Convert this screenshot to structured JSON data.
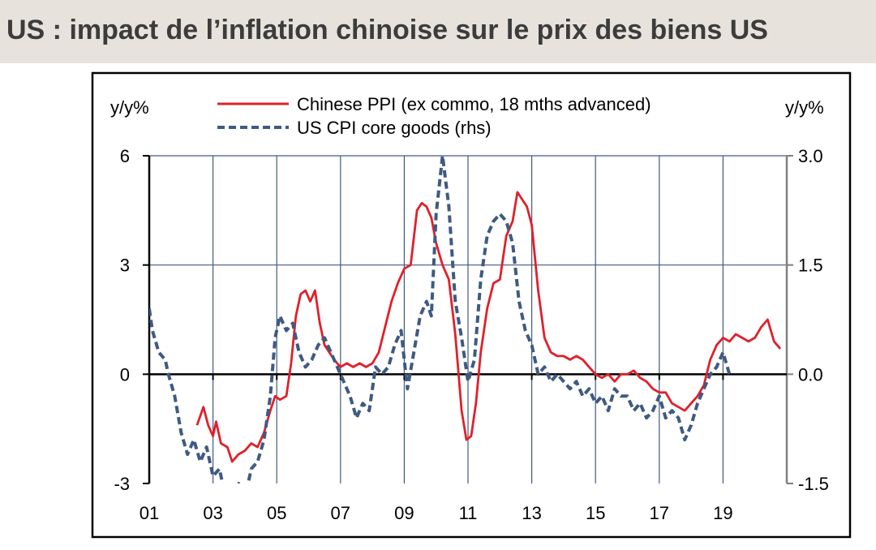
{
  "title": "US : impact de l’inflation chinoise sur le prix des biens US",
  "colors": {
    "title_background": "#e7e3dc",
    "ppi_line": "#e0202a",
    "cpi_line": "#3f5a82",
    "grid": "#3f5a82",
    "frame": "#000000"
  },
  "chart_data": {
    "type": "line",
    "title": "US : impact de l’inflation chinoise sur le prix des biens US",
    "ylabel_left": "y/y%",
    "ylabel_right": "y/y%",
    "xlabel": "",
    "x_tick_labels": [
      "01",
      "03",
      "05",
      "07",
      "09",
      "11",
      "13",
      "15",
      "17",
      "19"
    ],
    "x_tick_years": [
      2001,
      2003,
      2005,
      2007,
      2009,
      2011,
      2013,
      2015,
      2017,
      2019
    ],
    "xlim": [
      2001,
      2021
    ],
    "y_left_ticks": [
      "6",
      "3",
      "0",
      "-3"
    ],
    "y_left_values": [
      6,
      3,
      0,
      -3
    ],
    "ylim_left": [
      -3,
      6
    ],
    "y_right_ticks": [
      "3.0",
      "1.5",
      "0.0",
      "-1.5"
    ],
    "y_right_values": [
      3.0,
      1.5,
      0.0,
      -1.5
    ],
    "ylim_right": [
      -1.5,
      3.0
    ],
    "grid": true,
    "legend_position": "top",
    "series": [
      {
        "name": "Chinese PPI (ex commo, 18 mths advanced)",
        "axis": "left",
        "style": "solid",
        "color": "#e0202a",
        "x": [
          2002.5,
          2002.7,
          2002.85,
          2003.0,
          2003.1,
          2003.25,
          2003.45,
          2003.6,
          2003.8,
          2004.0,
          2004.2,
          2004.4,
          2004.6,
          2004.8,
          2004.95,
          2005.1,
          2005.3,
          2005.45,
          2005.6,
          2005.75,
          2005.9,
          2006.05,
          2006.2,
          2006.35,
          2006.5,
          2006.65,
          2006.8,
          2007.0,
          2007.2,
          2007.4,
          2007.6,
          2007.8,
          2008.0,
          2008.2,
          2008.4,
          2008.6,
          2008.8,
          2009.0,
          2009.2,
          2009.4,
          2009.55,
          2009.7,
          2009.85,
          2010.0,
          2010.2,
          2010.4,
          2010.6,
          2010.8,
          2010.95,
          2011.1,
          2011.25,
          2011.4,
          2011.6,
          2011.8,
          2012.0,
          2012.2,
          2012.4,
          2012.55,
          2012.7,
          2012.85,
          2013.0,
          2013.2,
          2013.4,
          2013.6,
          2013.8,
          2014.0,
          2014.2,
          2014.4,
          2014.6,
          2014.8,
          2015.0,
          2015.2,
          2015.4,
          2015.6,
          2015.8,
          2016.0,
          2016.2,
          2016.4,
          2016.6,
          2016.8,
          2017.0,
          2017.2,
          2017.4,
          2017.6,
          2017.8,
          2018.0,
          2018.2,
          2018.4,
          2018.6,
          2018.8,
          2019.0,
          2019.2,
          2019.4,
          2019.6,
          2019.8,
          2020.0,
          2020.2,
          2020.4,
          2020.6,
          2020.8
        ],
        "y": [
          -1.4,
          -0.9,
          -1.4,
          -1.7,
          -1.3,
          -1.9,
          -2.0,
          -2.4,
          -2.2,
          -2.1,
          -1.9,
          -2.0,
          -1.6,
          -1.0,
          -0.6,
          -0.7,
          -0.6,
          0.3,
          1.6,
          2.2,
          2.3,
          2.0,
          2.3,
          1.4,
          0.8,
          0.6,
          0.4,
          0.2,
          0.3,
          0.2,
          0.3,
          0.2,
          0.3,
          0.6,
          1.3,
          2.0,
          2.5,
          2.9,
          3.0,
          4.5,
          4.7,
          4.6,
          4.3,
          3.6,
          3.0,
          2.6,
          1.1,
          -1.0,
          -1.8,
          -1.7,
          -0.8,
          0.6,
          1.8,
          2.5,
          2.6,
          3.8,
          4.2,
          5.0,
          4.8,
          4.6,
          4.1,
          2.3,
          1.0,
          0.6,
          0.5,
          0.5,
          0.4,
          0.5,
          0.4,
          0.2,
          0.0,
          -0.1,
          0.0,
          -0.2,
          0.0,
          0.0,
          0.1,
          -0.1,
          -0.2,
          -0.4,
          -0.5,
          -0.5,
          -0.8,
          -0.9,
          -1.0,
          -0.8,
          -0.6,
          -0.3,
          0.4,
          0.8,
          1.0,
          0.9,
          1.1,
          1.0,
          0.9,
          1.0,
          1.3,
          1.5,
          0.9,
          0.7
        ]
      },
      {
        "name": "US CPI core goods (rhs)",
        "axis": "right",
        "style": "dashed",
        "color": "#3f5a82",
        "x": [
          2001.0,
          2001.1,
          2001.3,
          2001.5,
          2001.6,
          2001.8,
          2002.0,
          2002.2,
          2002.4,
          2002.6,
          2002.8,
          2003.0,
          2003.2,
          2003.4,
          2003.6,
          2003.8,
          2004.0,
          2004.2,
          2004.4,
          2004.6,
          2004.8,
          2004.95,
          2005.1,
          2005.3,
          2005.5,
          2005.7,
          2005.9,
          2006.1,
          2006.3,
          2006.5,
          2006.7,
          2006.9,
          2007.1,
          2007.3,
          2007.5,
          2007.7,
          2007.9,
          2008.1,
          2008.3,
          2008.5,
          2008.7,
          2008.9,
          2009.1,
          2009.3,
          2009.5,
          2009.7,
          2009.85,
          2010.0,
          2010.2,
          2010.4,
          2010.6,
          2010.8,
          2011.0,
          2011.2,
          2011.4,
          2011.6,
          2011.8,
          2012.0,
          2012.2,
          2012.4,
          2012.6,
          2012.8,
          2013.0,
          2013.2,
          2013.4,
          2013.6,
          2013.8,
          2014.0,
          2014.2,
          2014.4,
          2014.6,
          2014.8,
          2015.0,
          2015.2,
          2015.4,
          2015.6,
          2015.8,
          2016.0,
          2016.2,
          2016.4,
          2016.6,
          2016.8,
          2017.0,
          2017.2,
          2017.4,
          2017.6,
          2017.8,
          2018.0,
          2018.2,
          2018.4,
          2018.6,
          2018.8,
          2019.0,
          2019.2
        ],
        "y": [
          0.9,
          0.6,
          0.3,
          0.2,
          0.0,
          -0.3,
          -0.8,
          -1.1,
          -0.9,
          -1.2,
          -1.0,
          -1.4,
          -1.3,
          -1.7,
          -1.6,
          -1.5,
          -1.7,
          -1.3,
          -1.2,
          -0.9,
          -0.3,
          0.5,
          0.8,
          0.6,
          0.7,
          0.3,
          0.1,
          0.2,
          0.4,
          0.5,
          0.3,
          0.1,
          -0.1,
          -0.3,
          -0.6,
          -0.4,
          -0.5,
          0.1,
          0.0,
          0.1,
          0.4,
          0.6,
          -0.2,
          0.3,
          0.8,
          1.0,
          0.8,
          2.2,
          3.0,
          2.3,
          1.0,
          0.5,
          -0.1,
          0.2,
          1.3,
          1.9,
          2.1,
          2.2,
          2.1,
          1.8,
          1.0,
          0.6,
          0.4,
          0.0,
          0.1,
          -0.1,
          0.0,
          -0.1,
          -0.2,
          -0.1,
          -0.3,
          -0.2,
          -0.4,
          -0.3,
          -0.5,
          -0.2,
          -0.3,
          -0.3,
          -0.5,
          -0.4,
          -0.6,
          -0.5,
          -0.3,
          -0.6,
          -0.5,
          -0.6,
          -0.9,
          -0.7,
          -0.4,
          -0.2,
          0.0,
          0.1,
          0.3,
          0.0
        ]
      }
    ]
  }
}
